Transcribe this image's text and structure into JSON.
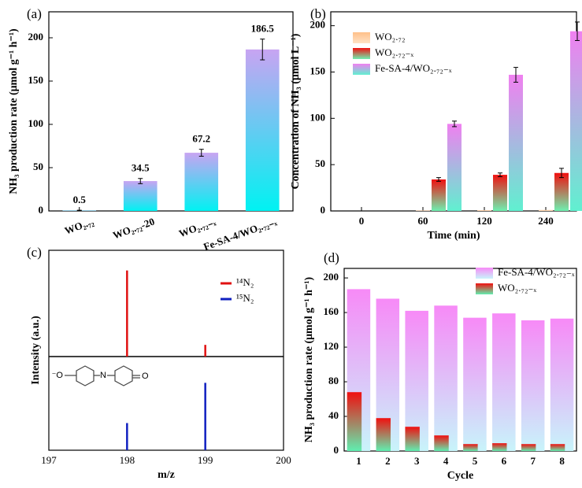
{
  "chart_data": [
    {
      "type": "bar",
      "panel_label": "(a)",
      "y_label": "NH₃ production rate (μmol g⁻¹ h⁻¹)",
      "categories": [
        "WO₂.₇₂",
        "WO₂.₇₂-20",
        "WO₂.₇₂₋ₓ",
        "Fe-SA-4/WO₂.₇₂₋ₓ"
      ],
      "values": [
        0.5,
        34.5,
        67.2,
        186.5
      ],
      "errors": [
        0.3,
        3,
        4,
        12
      ],
      "color": "#c8a4f2",
      "color2": "#00f2f2",
      "ylim": [
        0,
        230
      ],
      "yticks": [
        0,
        50,
        100,
        150,
        200
      ]
    },
    {
      "type": "grouped_bar",
      "panel_label": "(b)",
      "y_label": "Concentration of NH₃ (μmol L⁻¹)",
      "x_label": "Time (min)",
      "categories": [
        "0",
        "60",
        "120",
        "240"
      ],
      "series": [
        {
          "name": "WO₂.₇₂",
          "color": "#ffc08a",
          "color2": "#ffe2c4",
          "values": [
            0,
            0.5,
            0.8,
            1.0
          ]
        },
        {
          "name": "WO₂.₇₂₋ₓ",
          "color": "#f01010",
          "color2": "#6ef0b0",
          "values": [
            0,
            34,
            39,
            41
          ],
          "errors": [
            0,
            2,
            2,
            5
          ]
        },
        {
          "name": "Fe-SA-4/WO₂.₇₂₋ₓ",
          "color": "#f080f0",
          "color2": "#60f0d0",
          "values": [
            0,
            94,
            147,
            194
          ],
          "errors": [
            0,
            3,
            8,
            10
          ]
        }
      ],
      "ylim": [
        0,
        215
      ],
      "yticks": [
        0,
        50,
        100,
        150,
        200
      ]
    },
    {
      "type": "stem",
      "panel_label": "(c)",
      "y_label": "Intensity (a.u.)",
      "x_label": "m/z",
      "structure_labels": [
        "⁻O",
        "N",
        "O"
      ],
      "series": [
        {
          "name": "¹⁴N₂",
          "color": "#e01010",
          "x": [
            198,
            199
          ],
          "values": [
            0.81,
            0.11
          ]
        },
        {
          "name": "¹⁵N₂",
          "color": "#1020c0",
          "x": [
            198,
            199
          ],
          "values": [
            0.29,
            0.72
          ]
        }
      ],
      "ylim": [
        0,
        1
      ],
      "xlim": [
        197,
        200
      ],
      "xticks": [
        197,
        198,
        199,
        200
      ]
    },
    {
      "type": "overlay_bar",
      "panel_label": "(d)",
      "y_label": "NH₃ production rate (μmol g⁻¹ h⁻¹)",
      "x_label": "Cycle",
      "categories": [
        "1",
        "2",
        "3",
        "4",
        "5",
        "6",
        "7",
        "8"
      ],
      "series": [
        {
          "name": "Fe-SA-4/WO₂.₇₂₋ₓ",
          "color": "#f78af7",
          "color2": "#c8f4fa",
          "values": [
            187,
            176,
            162,
            168,
            154,
            159,
            151,
            153
          ]
        },
        {
          "name": "WO₂.₇₂₋ₓ",
          "color": "#f01010",
          "color2": "#60eeb0",
          "values": [
            68,
            38,
            28,
            18,
            8,
            9,
            8,
            8
          ]
        }
      ],
      "ylim": [
        0,
        211
      ],
      "yticks": [
        0,
        40,
        80,
        120,
        160,
        200
      ]
    }
  ]
}
